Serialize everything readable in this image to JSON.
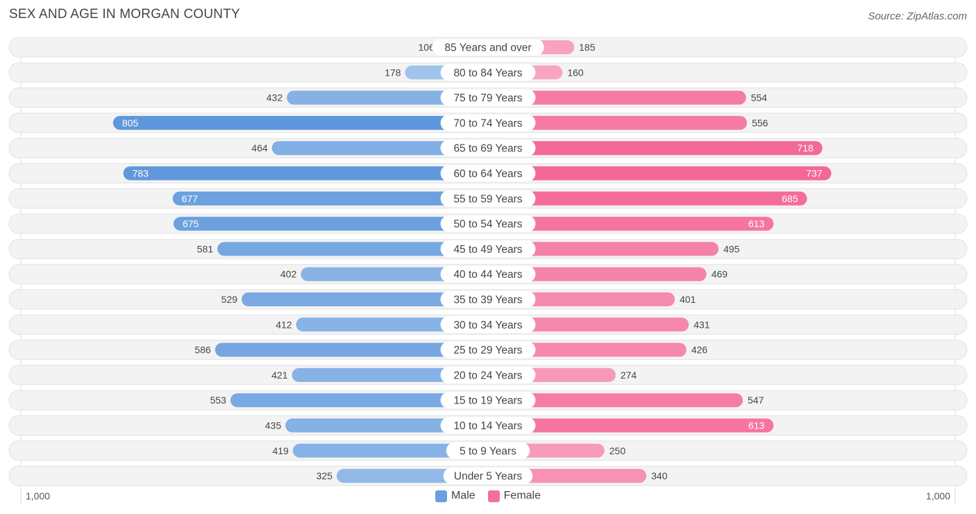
{
  "title": "SEX AND AGE IN MORGAN COUNTY",
  "source": "Source: ZipAtlas.com",
  "axis": {
    "left_label": "1,000",
    "right_label": "1,000"
  },
  "legend": [
    {
      "label": "Male",
      "color": "#6a9fdd"
    },
    {
      "label": "Female",
      "color": "#f2709a"
    }
  ],
  "chart_data": {
    "type": "bar",
    "orientation": "horizontal-diverging",
    "xlim": [
      0,
      1000
    ],
    "categories": [
      "85 Years and over",
      "80 to 84 Years",
      "75 to 79 Years",
      "70 to 74 Years",
      "65 to 69 Years",
      "60 to 64 Years",
      "55 to 59 Years",
      "50 to 54 Years",
      "45 to 49 Years",
      "40 to 44 Years",
      "35 to 39 Years",
      "30 to 34 Years",
      "25 to 29 Years",
      "20 to 24 Years",
      "15 to 19 Years",
      "10 to 14 Years",
      "5 to 9 Years",
      "Under 5 Years"
    ],
    "series": [
      {
        "name": "Male",
        "values": [
          106,
          178,
          432,
          805,
          464,
          783,
          677,
          675,
          581,
          402,
          529,
          412,
          586,
          421,
          553,
          435,
          419,
          325
        ]
      },
      {
        "name": "Female",
        "values": [
          185,
          160,
          554,
          556,
          718,
          737,
          685,
          613,
          495,
          469,
          401,
          431,
          426,
          274,
          547,
          613,
          250,
          340
        ]
      }
    ]
  }
}
